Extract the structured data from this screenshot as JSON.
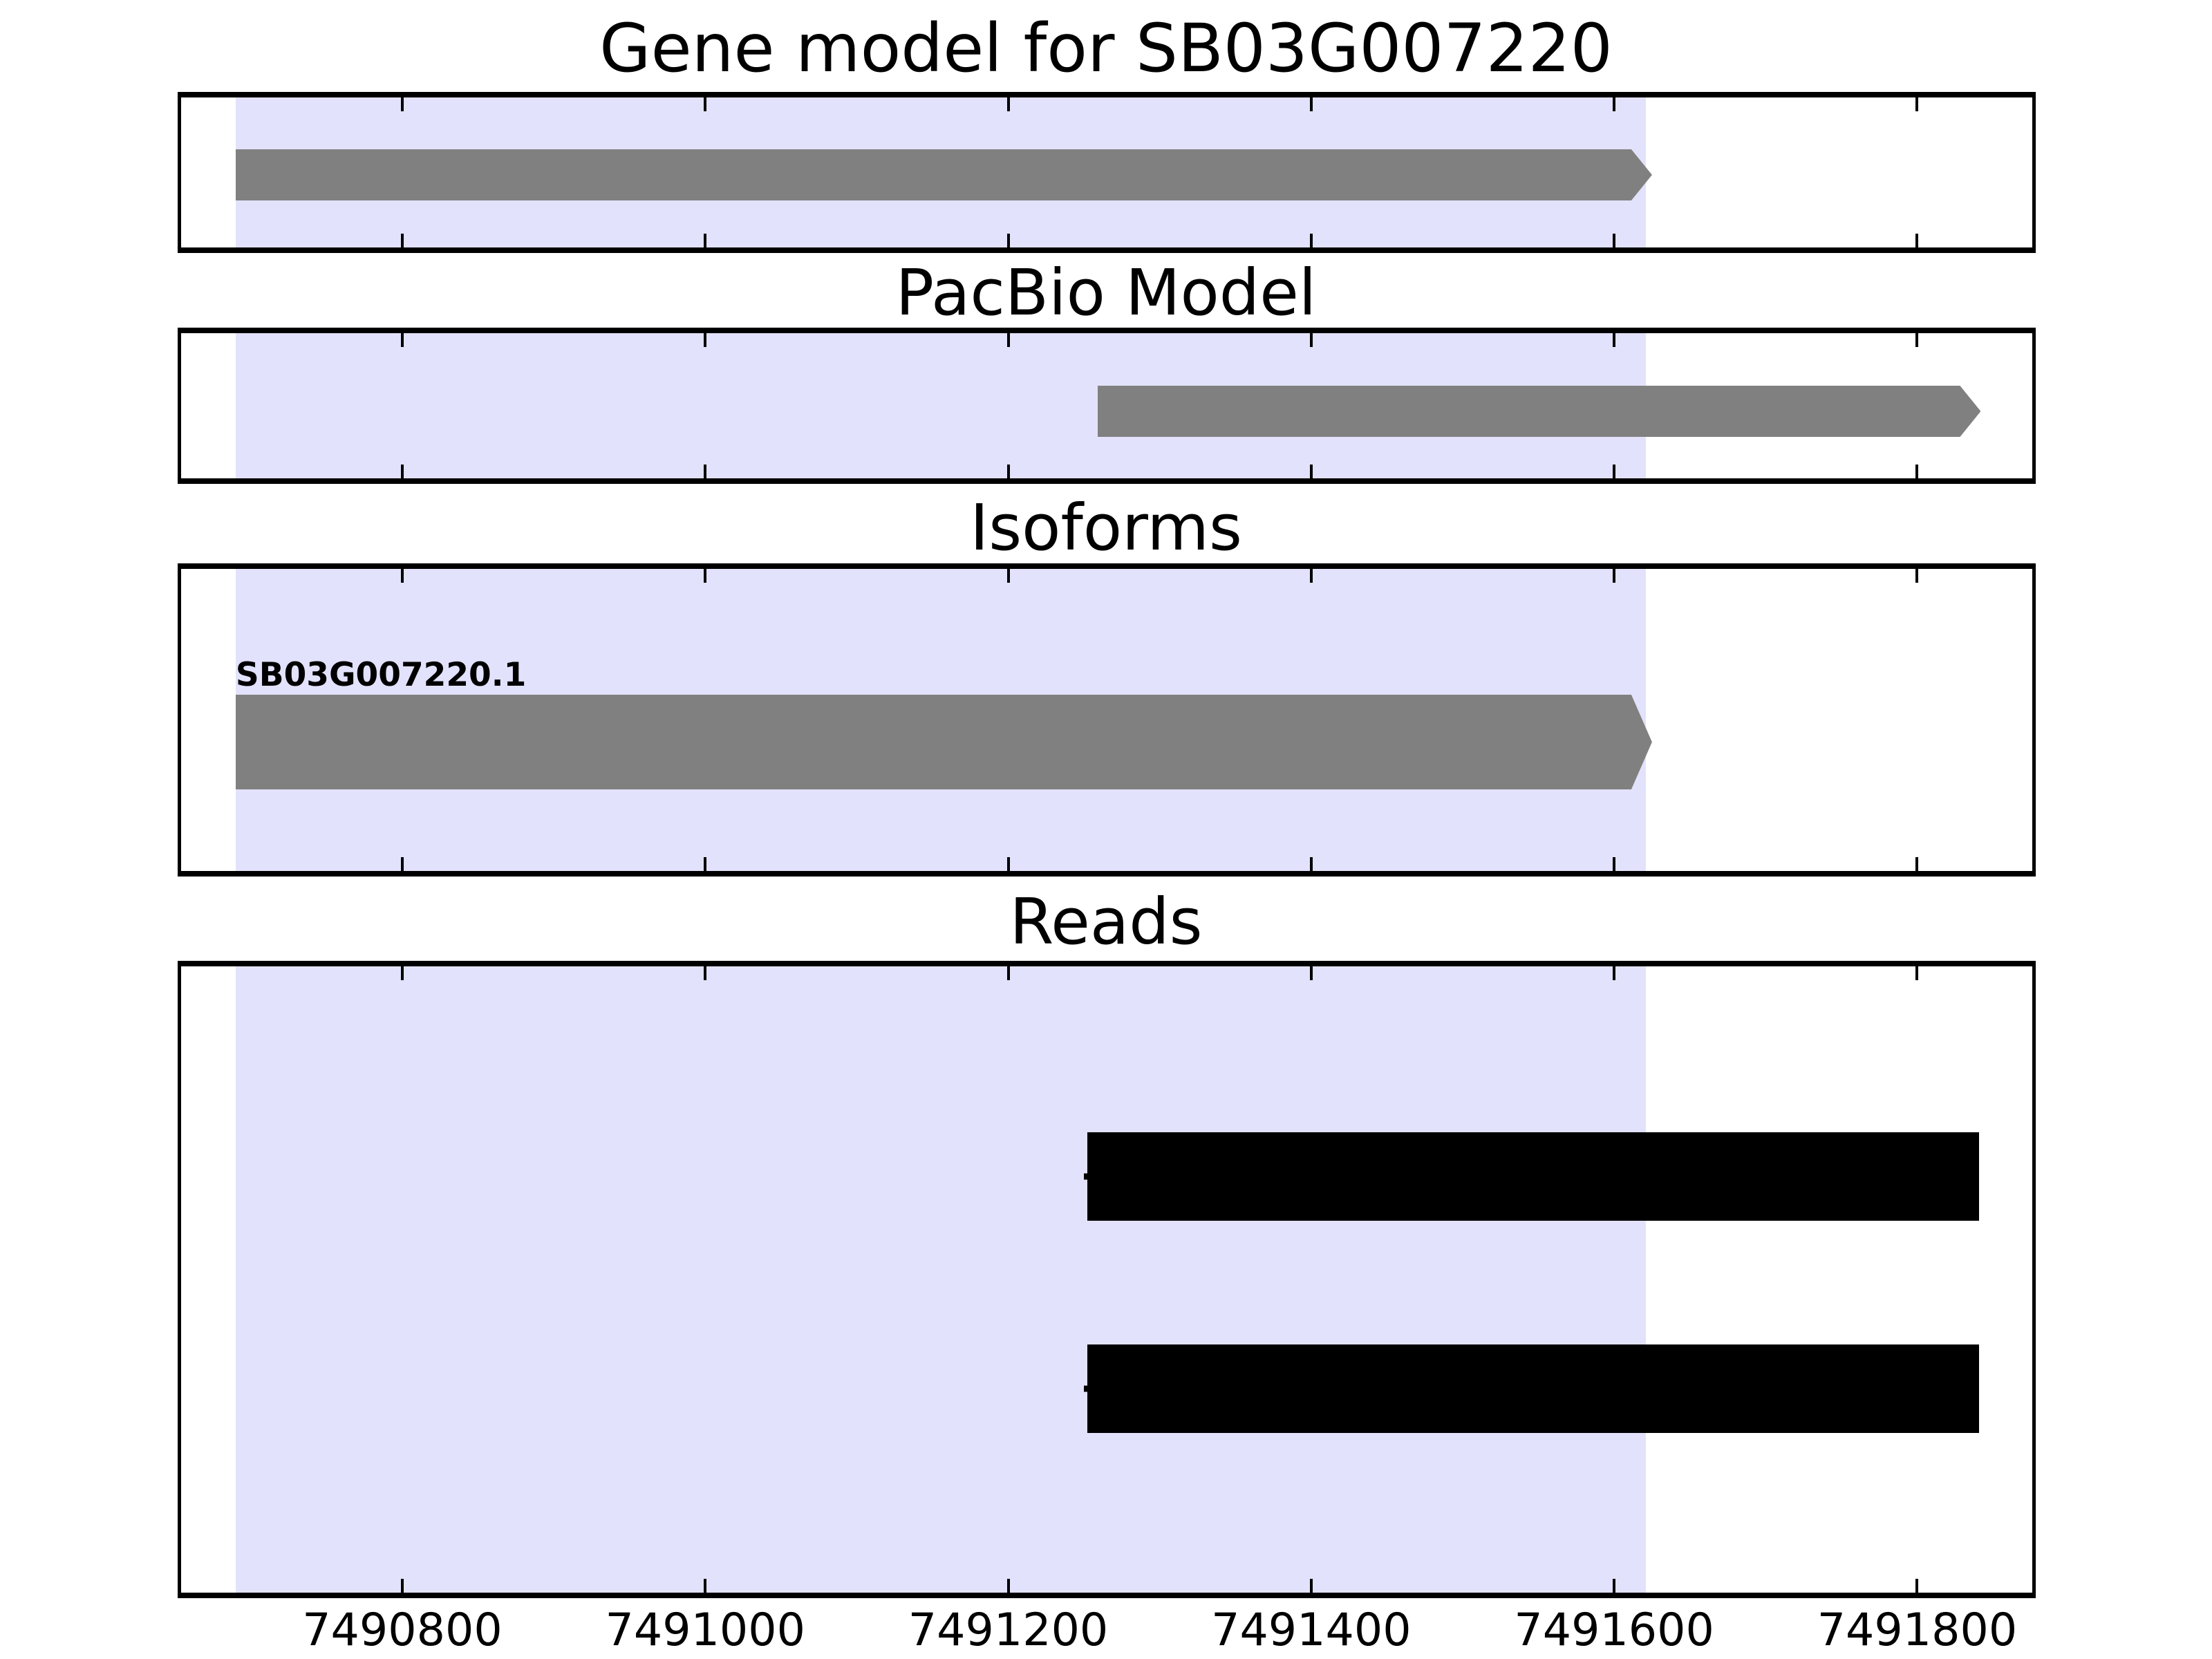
{
  "figure": {
    "background": "#FFFFFF",
    "border_color": "#000000",
    "colors": {
      "feature_gray": "#808080",
      "read_black": "#000000",
      "highlight_lavender": "#E2E2FC"
    }
  },
  "chart_data": {
    "type": "bar",
    "subtype": "genomic-interval-tracks",
    "title": "Gene model for SB03G007220",
    "xlabel": "",
    "ylabel": "",
    "grid": false,
    "legend": null,
    "x_axis": {
      "range": [
        7490654,
        7491876
      ],
      "ticks": [
        7490800,
        7491000,
        7491200,
        7491400,
        7491600,
        7491800
      ],
      "tick_labels": [
        "7490800",
        "7491000",
        "7491200",
        "7491400",
        "7491600",
        "7491800"
      ]
    },
    "highlight_region": {
      "start": 7490690,
      "end": 7491621,
      "color": "#E2E2FC"
    },
    "tracks": [
      {
        "name": "Gene model for SB03G007220",
        "features": [
          {
            "label": "",
            "start": 7490690,
            "end": 7491625,
            "shape": "arrow-right",
            "color": "#808080"
          }
        ]
      },
      {
        "name": "PacBio Model",
        "features": [
          {
            "label": "",
            "start": 7491259,
            "end": 7491842,
            "shape": "arrow-right",
            "color": "#808080"
          }
        ]
      },
      {
        "name": "Isoforms",
        "features": [
          {
            "label": "SB03G007220.1",
            "start": 7490690,
            "end": 7491625,
            "shape": "arrow-right",
            "color": "#808080"
          }
        ]
      },
      {
        "name": "Reads",
        "features": [
          {
            "label": "",
            "start": 7491252,
            "end": 7491841,
            "shape": "read",
            "color": "#000000"
          },
          {
            "label": "",
            "start": 7491252,
            "end": 7491841,
            "shape": "read",
            "color": "#000000"
          }
        ]
      }
    ]
  }
}
